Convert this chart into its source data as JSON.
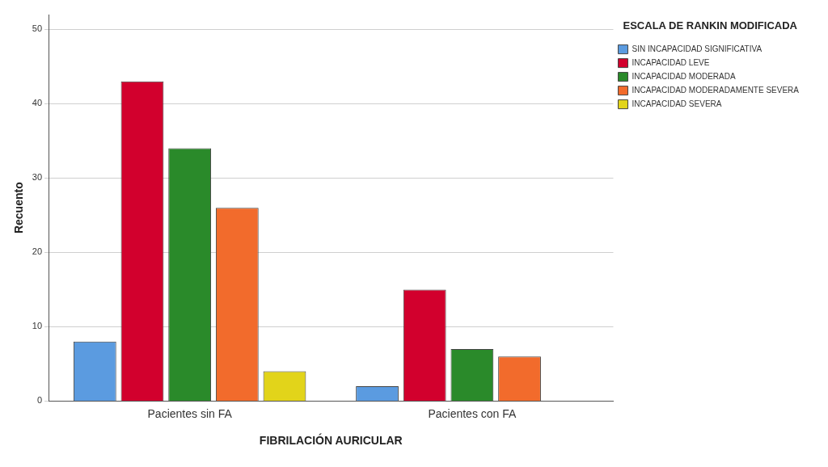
{
  "chart_data": {
    "type": "bar",
    "xlabel": "FIBRILACIÓN AURICULAR",
    "ylabel": "Recuento",
    "legend_title": "ESCALA DE RANKIN MODIFICADA",
    "categories": [
      "Pacientes sin FA",
      "Pacientes con FA"
    ],
    "series": [
      {
        "name": "SIN INCAPACIDAD SIGNIFICATIVA",
        "color": "#5b9be0",
        "values": [
          8,
          2
        ]
      },
      {
        "name": "INCAPACIDAD LEVE",
        "color": "#d2002d",
        "values": [
          43,
          15
        ]
      },
      {
        "name": "INCAPACIDAD MODERADA",
        "color": "#2a8a2a",
        "values": [
          34,
          7
        ]
      },
      {
        "name": "INCAPACIDAD MODERADAMENTE SEVERA",
        "color": "#f26b2c",
        "values": [
          26,
          6
        ]
      },
      {
        "name": "INCAPACIDAD SEVERA",
        "color": "#e2d41a",
        "values": [
          4,
          null
        ]
      }
    ],
    "ylim": [
      0,
      52
    ],
    "yticks": [
      0,
      10,
      20,
      30,
      40,
      50
    ],
    "grid": "y",
    "legend": "top right"
  }
}
